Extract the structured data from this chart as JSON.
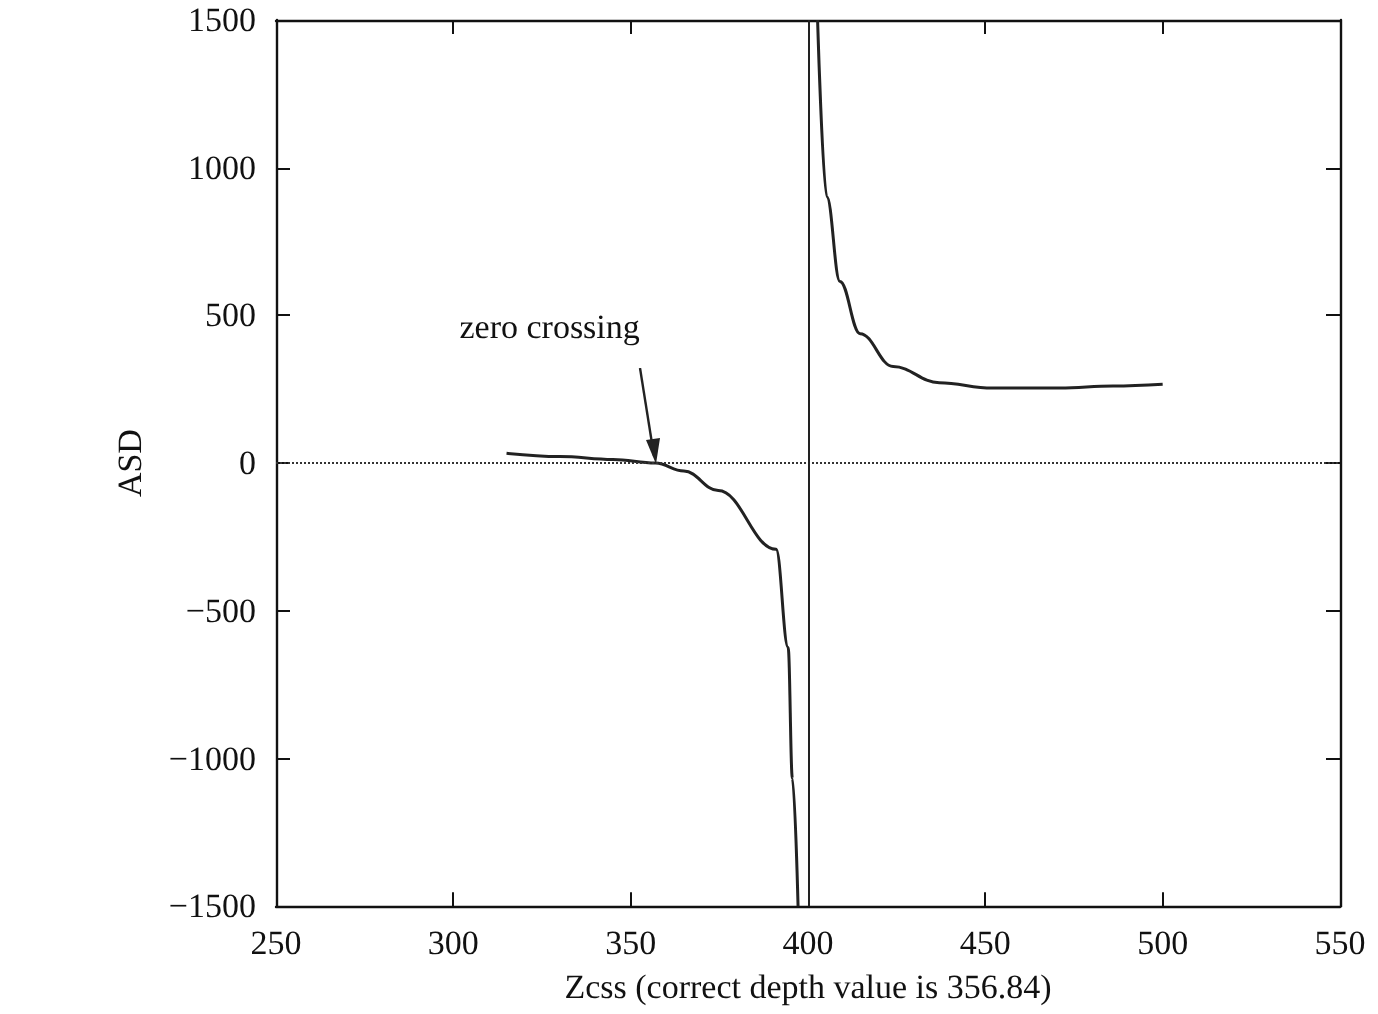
{
  "chart_data": {
    "type": "line",
    "xlabel": "Zcss (correct depth value is 356.84)",
    "ylabel": "ASD",
    "x": [
      315,
      330,
      345,
      357,
      365,
      374.7,
      391,
      394.4,
      395.6,
      397.2,
      400,
      402.7,
      405.3,
      409,
      414.7,
      424,
      437,
      452,
      471,
      486,
      500
    ],
    "series": [
      {
        "color": "#222222",
        "values": [
          33,
          22,
          12,
          0,
          -27,
          -93,
          -292,
          -624,
          -1068,
          -1500,
          null,
          1500,
          902,
          615,
          438,
          327,
          272,
          254,
          254,
          261,
          267
        ]
      }
    ],
    "xlim": [
      250,
      550
    ],
    "xticks": [
      250,
      300,
      350,
      400,
      450,
      500,
      550
    ],
    "ylim": [
      -1500,
      1500
    ],
    "yticks": [
      {
        "value": -1500,
        "label": "−1500"
      },
      {
        "value": -1000,
        "label": "−1000"
      },
      {
        "value": -500,
        "label": "−500"
      },
      0,
      500,
      1000,
      1500
    ],
    "ref_lines": [
      {
        "axis": "y",
        "value": 0,
        "line_style": "dotted",
        "color": "#333333"
      },
      {
        "axis": "x",
        "value": 400,
        "line_style": "solid",
        "color": "#222222"
      }
    ],
    "annotations": [
      {
        "text": "zero crossing",
        "x": 357,
        "y": 0
      }
    ],
    "grid": false,
    "marker": "none",
    "line_style": "solid"
  }
}
